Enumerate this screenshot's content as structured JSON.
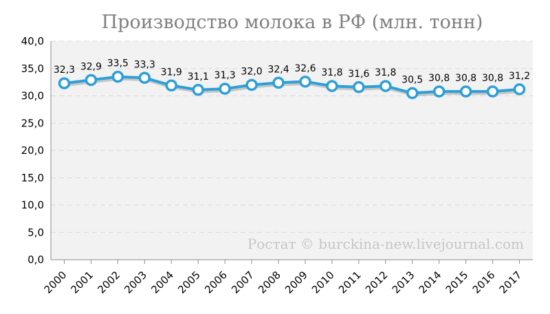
{
  "chart_data": {
    "type": "line",
    "title": "Производство молока в РФ (млн. тонн)",
    "categories": [
      "2000",
      "2001",
      "2002",
      "2003",
      "2004",
      "2005",
      "2006",
      "2007",
      "2008",
      "2009",
      "2010",
      "2011",
      "2012",
      "2013",
      "2014",
      "2015",
      "2016",
      "2017"
    ],
    "series": [
      {
        "values": [
          32.3,
          32.9,
          33.5,
          33.3,
          31.9,
          31.1,
          31.3,
          32.0,
          32.4,
          32.6,
          31.8,
          31.6,
          31.8,
          30.5,
          30.8,
          30.8,
          30.8,
          31.2
        ]
      }
    ],
    "data_labels": [
      "32,3",
      "32,9",
      "33,5",
      "33,3",
      "31,9",
      "31,1",
      "31,3",
      "32,0",
      "32,4",
      "32,6",
      "31,8",
      "31,6",
      "31,8",
      "30,5",
      "30,8",
      "30,8",
      "30,8",
      "31,2"
    ],
    "y_ticks": [
      "0,0",
      "5,0",
      "10,0",
      "15,0",
      "20,0",
      "25,0",
      "30,0",
      "35,0",
      "40,0"
    ],
    "ylim": [
      0,
      40
    ],
    "grid": true,
    "watermark": "Ростат © burckina-new.livejournal.com",
    "colors": {
      "line": "#2e9fd6",
      "marker_fill": "#ffffff",
      "plot_bg": "#f2f2f2",
      "grid": "#d9d9d9",
      "title": "#7f7f7f",
      "watermark": "#c6c6c6"
    }
  }
}
